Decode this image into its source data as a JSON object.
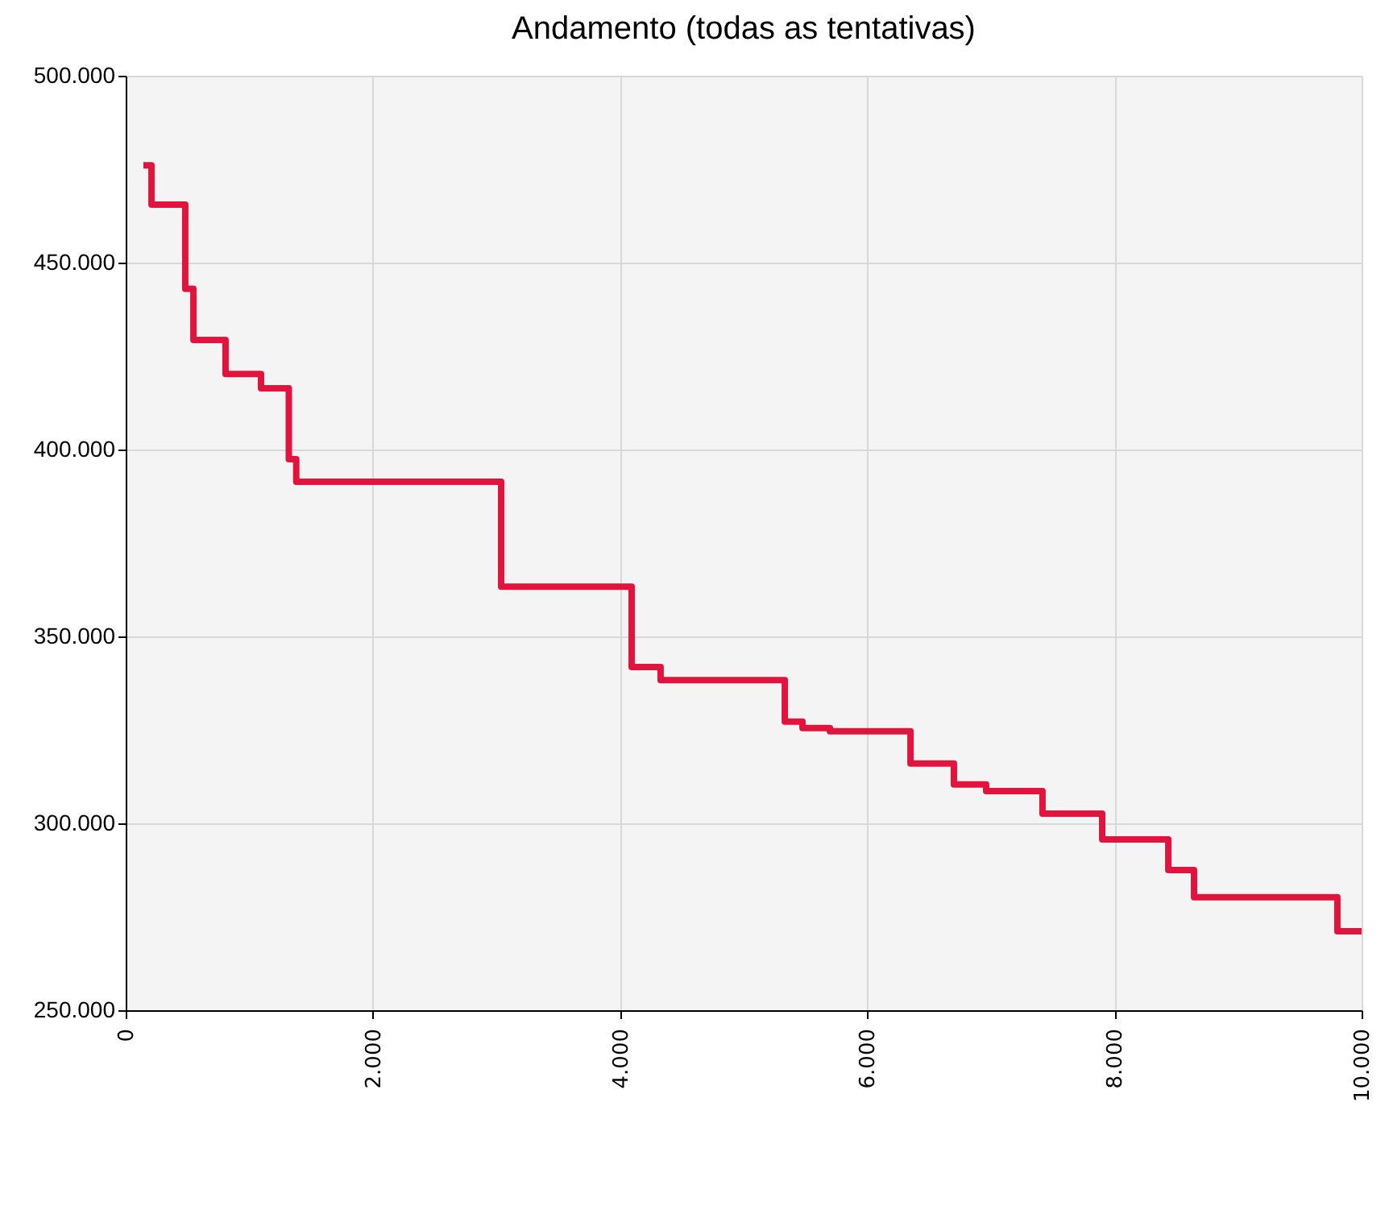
{
  "chart_data": {
    "type": "step",
    "title": "Andamento (todas as tentativas)",
    "x": [
      143,
      209,
      482,
      548,
      808,
      1095,
      1320,
      1380,
      3038,
      4094,
      4328,
      5333,
      5476,
      5698,
      6350,
      6701,
      6962,
      7418,
      7901,
      8436,
      8644,
      9804,
      10000
    ],
    "series": [
      {
        "color": "#e0143c",
        "values": [
          476000,
          465500,
          443000,
          429300,
          420200,
          416400,
          397400,
          391400,
          363300,
          341800,
          338300,
          327200,
          325500,
          324600,
          316000,
          310400,
          308600,
          302600,
          295700,
          287500,
          280200,
          271100,
          271100
        ]
      }
    ],
    "xlim": [
      0,
      10000
    ],
    "xticks": [
      0,
      {
        "value": 2000,
        "label": "2.000"
      },
      {
        "value": 4000,
        "label": "4.000"
      },
      {
        "value": 6000,
        "label": "6.000"
      },
      {
        "value": 8000,
        "label": "8.000"
      },
      {
        "value": 10000,
        "label": "10.000"
      }
    ],
    "ylim": [
      250000,
      500000
    ],
    "yticks": [
      {
        "value": 250000,
        "label": "250.000"
      },
      {
        "value": 300000,
        "label": "300.000"
      },
      {
        "value": 350000,
        "label": "350.000"
      },
      {
        "value": 400000,
        "label": "400.000"
      },
      {
        "value": 450000,
        "label": "450.000"
      },
      {
        "value": 500000,
        "label": "500.000"
      }
    ],
    "grid": true,
    "line_style": "solid",
    "marker": "none"
  }
}
